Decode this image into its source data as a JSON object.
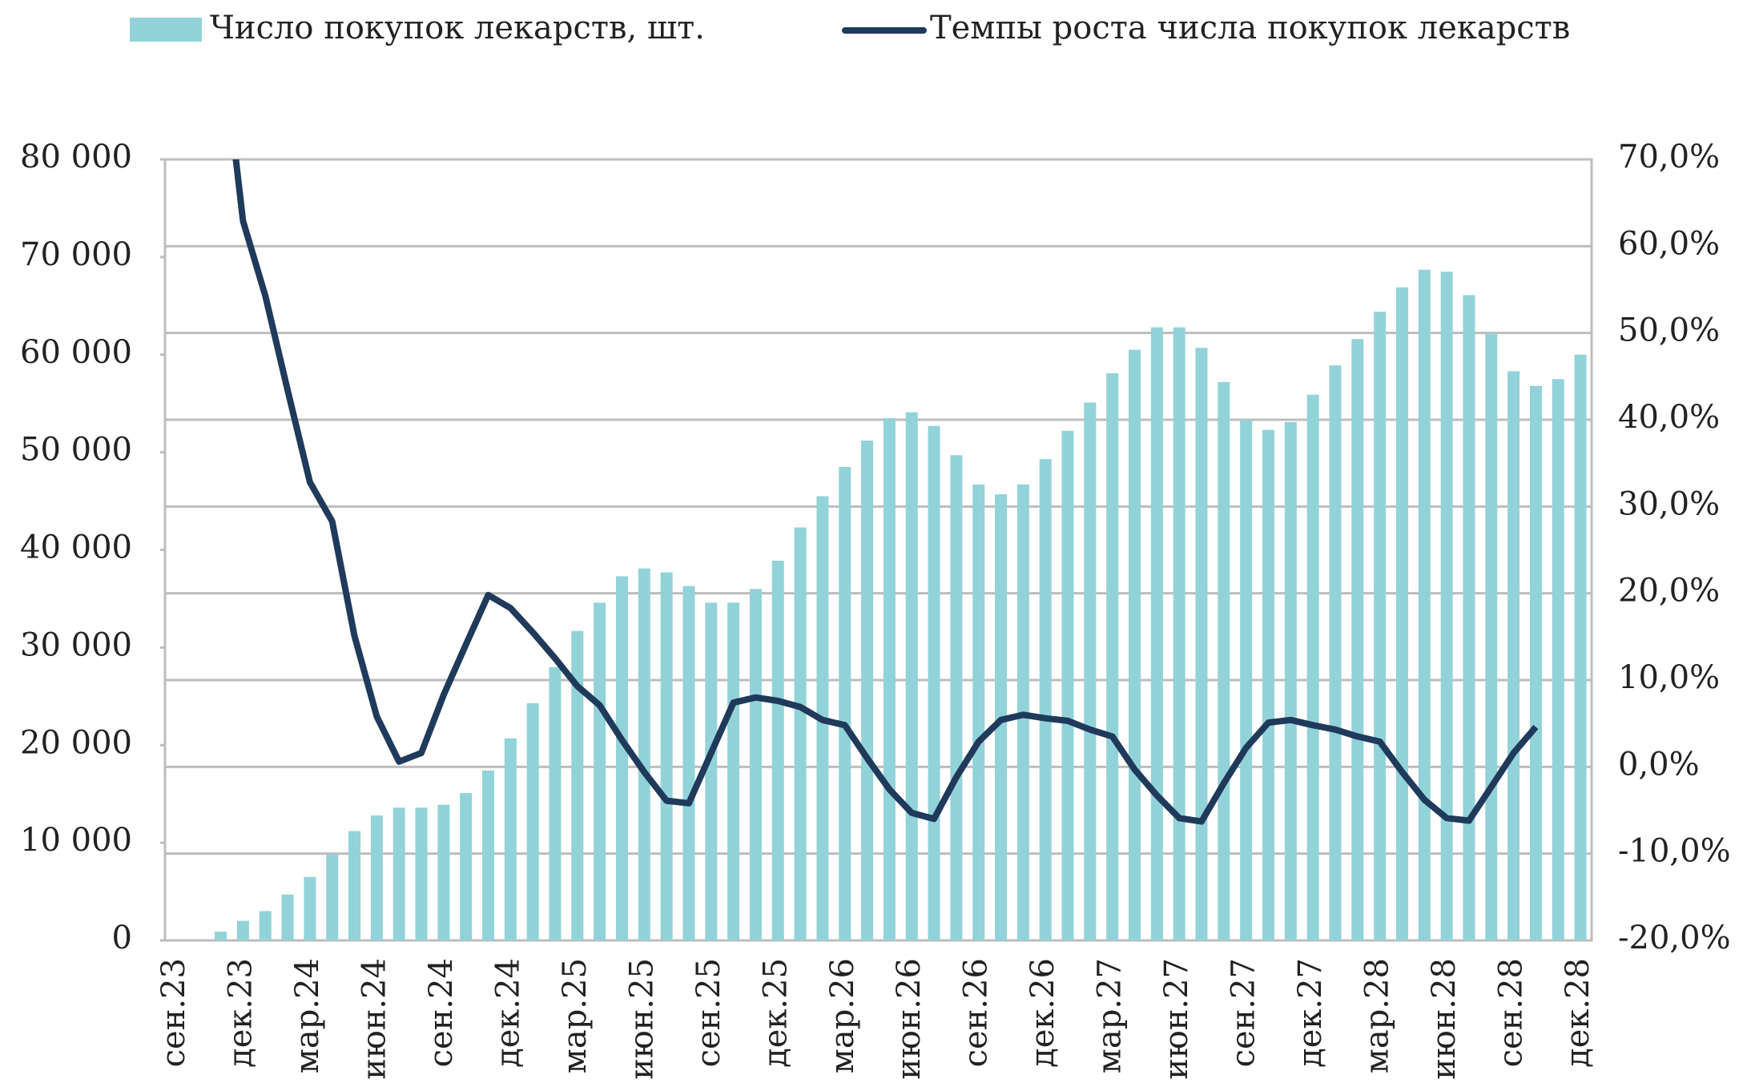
{
  "chart_data": {
    "type": "bar_line",
    "categories": [
      "сен.23",
      null,
      null,
      "дек.23",
      null,
      null,
      "мар.24",
      null,
      null,
      "июн.24",
      null,
      null,
      "сен.24",
      null,
      null,
      "дек.24",
      null,
      null,
      "мар.25",
      null,
      null,
      "июн.25",
      null,
      null,
      "сен.25",
      null,
      null,
      "дек.25",
      null,
      null,
      "мар.26",
      null,
      null,
      "июн.26",
      null,
      null,
      "сен.26",
      null,
      null,
      "дек.26",
      null,
      null,
      "мар.27",
      null,
      null,
      "июн.27",
      null,
      null,
      "сен.27",
      null,
      null,
      "дек.27",
      null,
      null,
      "мар.28",
      null,
      null,
      "июн.28",
      null,
      null,
      "сен.28",
      null,
      null,
      "дек.28"
    ],
    "series": [
      {
        "name": "Число покупок лекарств, шт.",
        "type": "bar",
        "color": "#92d3d9",
        "values": [
          0,
          0,
          900,
          2000,
          3000,
          4700,
          6500,
          8800,
          11200,
          12800,
          13600,
          13600,
          13900,
          15100,
          17400,
          20700,
          24300,
          28000,
          31700,
          34600,
          37300,
          38100,
          37700,
          36300,
          34600,
          34600,
          36000,
          38900,
          42300,
          45500,
          48500,
          51200,
          53500,
          54100,
          52700,
          49700,
          46700,
          45700,
          46700,
          49300,
          52200,
          55100,
          58100,
          60500,
          62800,
          62800,
          60700,
          57200,
          53300,
          52300,
          53100,
          55900,
          58900,
          61600,
          64400,
          66900,
          68700,
          68500,
          66100,
          62200,
          58300,
          56800,
          57500,
          60000
        ]
      },
      {
        "name": "Темпы роста числа покупок лекарств",
        "type": "line",
        "axis": "y2",
        "color": "#1f3a5a",
        "values": [
          null,
          null,
          85,
          62.9,
          54.3,
          43.4,
          32.8,
          28.3,
          15.1,
          5.8,
          0.6,
          1.6,
          8.3,
          14.1,
          19.8,
          18.3,
          15.5,
          12.5,
          9.3,
          7.1,
          3.1,
          -0.6,
          -3.9,
          -4.2,
          1.6,
          7.4,
          8.0,
          7.6,
          6.9,
          5.4,
          4.8,
          1.0,
          -2.6,
          -5.3,
          -6.0,
          -1.2,
          2.9,
          5.4,
          6.0,
          5.6,
          5.3,
          4.3,
          3.5,
          -0.3,
          -3.3,
          -5.9,
          -6.3,
          -1.9,
          2.2,
          5.1,
          5.4,
          4.8,
          4.3,
          3.5,
          2.9,
          -0.6,
          -3.8,
          -5.9,
          -6.2,
          -2.3,
          1.6,
          4.6,
          null,
          null
        ]
      }
    ],
    "ylim": [
      0,
      80000
    ],
    "yticks": [
      0,
      {
        "value": 10000,
        "label": "10 000"
      },
      {
        "value": 20000,
        "label": "20 000"
      },
      {
        "value": 30000,
        "label": "30 000"
      },
      {
        "value": 40000,
        "label": "40 000"
      },
      {
        "value": 50000,
        "label": "50 000"
      },
      {
        "value": 60000,
        "label": "60 000"
      },
      {
        "value": 70000,
        "label": "70 000"
      },
      {
        "value": 80000,
        "label": "80 000"
      }
    ],
    "y2lim": [
      -20,
      70
    ],
    "y2ticks": [
      {
        "value": -20,
        "label": "-20,0%"
      },
      {
        "value": -10,
        "label": "-10,0%"
      },
      {
        "value": 0,
        "label": "0,0%"
      },
      {
        "value": 10,
        "label": "10,0%"
      },
      {
        "value": 20,
        "label": "20,0%"
      },
      {
        "value": 30,
        "label": "30,0%"
      },
      {
        "value": 40,
        "label": "40,0%"
      },
      {
        "value": 50,
        "label": "50,0%"
      },
      {
        "value": 60,
        "label": "60,0%"
      },
      {
        "value": 70,
        "label": "70,0%"
      }
    ],
    "grid": true,
    "legend": "top"
  }
}
